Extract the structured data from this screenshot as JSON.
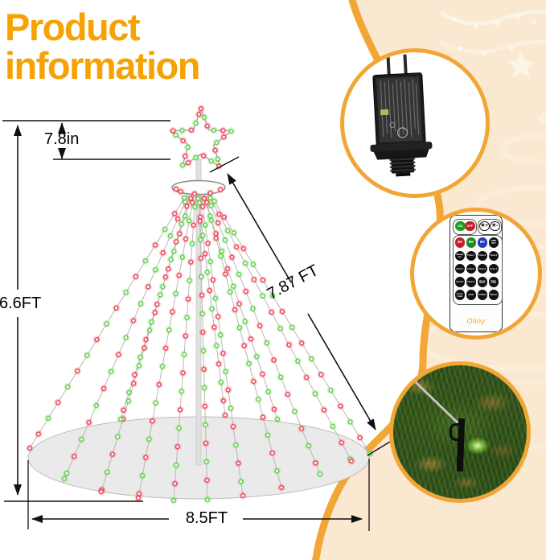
{
  "title": {
    "line1": "Product",
    "line2": "information"
  },
  "measurements": {
    "star_height": "7.8in",
    "tree_height": "6.6FT",
    "string_length": "7.87 FT",
    "base_width": "8.5FT"
  },
  "colors": {
    "accent": "#f6a203",
    "curve": "#f2a636",
    "cream": "#fae8d0",
    "red": "#ee4b5c",
    "green": "#67d153"
  },
  "insets": {
    "adapter": {
      "name": "power-adapter-plug"
    },
    "remote": {
      "brand": "Oliny",
      "power_on": "ON",
      "power_off": "OFF",
      "brightness_up": "☀+",
      "brightness_down": "☀-",
      "timers": [
        "4H",
        "6H",
        "8H"
      ],
      "timer_off": "TIME OFF",
      "modes": [
        "Steady On",
        "Flow 1",
        "Flow 2",
        "Flow 3",
        "Flow 4",
        "Flow 5",
        "Flow 6",
        "Flow 7",
        "Flow 8",
        "Flow 9",
        "Horse Race",
        "Dark Fade",
        "Cross Fade",
        "Fade",
        "S-Wave",
        "Waves"
      ]
    },
    "stake": {
      "name": "ground-stake-in-grass"
    }
  }
}
